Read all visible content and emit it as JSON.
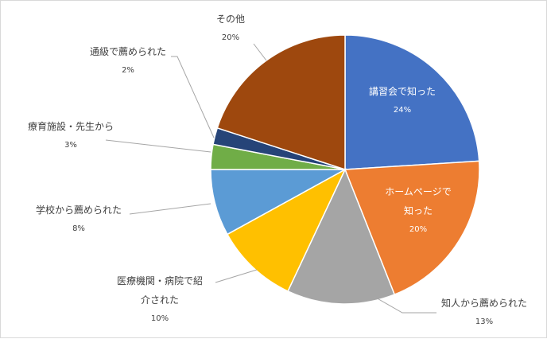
{
  "chart_data": {
    "type": "pie",
    "title": "",
    "start_angle_deg": 0,
    "direction": "clockwise",
    "slices": [
      {
        "label": "講習会で知った",
        "value": 24,
        "value_label": "24%",
        "color": "#4472C4",
        "label_lines": [
          "講習会で知った"
        ]
      },
      {
        "label": "ホームページで知った",
        "value": 20,
        "value_label": "20%",
        "color": "#ED7D31",
        "label_lines": [
          "ホームページで",
          "知った"
        ]
      },
      {
        "label": "知人から薦められた",
        "value": 13,
        "value_label": "13%",
        "color": "#A5A5A5",
        "label_lines": [
          "知人から薦められた"
        ]
      },
      {
        "label": "医療機関・病院で紹介された",
        "value": 10,
        "value_label": "10%",
        "color": "#FFC000",
        "label_lines": [
          "医療機関・病院で紹",
          "介された"
        ]
      },
      {
        "label": "学校から薦められた",
        "value": 8,
        "value_label": "8%",
        "color": "#5B9BD5",
        "label_lines": [
          "学校から薦められた"
        ]
      },
      {
        "label": "療育施設・先生から",
        "value": 3,
        "value_label": "3%",
        "color": "#70AD47",
        "label_lines": [
          "療育施設・先生から"
        ]
      },
      {
        "label": "通級で薦められた",
        "value": 2,
        "value_label": "2%",
        "color": "#264478",
        "label_lines": [
          "通級で薦められた"
        ]
      },
      {
        "label": "その他",
        "value": 20,
        "value_label": "20%",
        "color": "#9E480E",
        "label_lines": [
          "その他"
        ]
      }
    ]
  }
}
